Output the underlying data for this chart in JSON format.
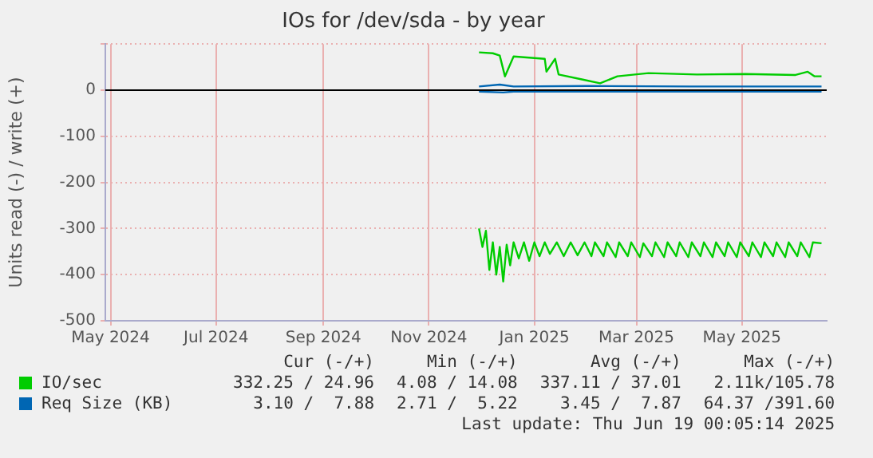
{
  "chart_data": {
    "type": "line",
    "title": "IOs for /dev/sda - by year",
    "ylabel": "Units read (-) / write (+)",
    "xlim": [
      "2024-04-28",
      "2025-06-19"
    ],
    "xticks": [
      {
        "value": "2024-05-01",
        "label": "May 2024"
      },
      {
        "value": "2024-07-01",
        "label": "Jul 2024"
      },
      {
        "value": "2024-09-01",
        "label": "Sep 2024"
      },
      {
        "value": "2024-11-01",
        "label": "Nov 2024"
      },
      {
        "value": "2025-01-01",
        "label": "Jan 2025"
      },
      {
        "value": "2025-03-01",
        "label": "Mar 2025"
      },
      {
        "value": "2025-05-01",
        "label": "May 2025"
      }
    ],
    "ylim": [
      -500,
      100
    ],
    "yticks": [
      -500,
      -400,
      -300,
      -200,
      -100,
      0,
      {
        "value": 100,
        "label": null
      }
    ],
    "grid": true,
    "legend": "bottom",
    "marker": "none",
    "line_style": "solid",
    "ref_lines": [
      {
        "axis": "y",
        "value": 0,
        "color": "#000000"
      }
    ],
    "series": [
      {
        "name": "IO/sec",
        "color": "#00cc00",
        "x": [
          "2024-11-30",
          "2024-12-08",
          "2024-12-12",
          "2024-12-15",
          "2024-12-20",
          "2025-01-07",
          "2025-01-08",
          "2025-01-13",
          "2025-01-15",
          "2025-01-29",
          "2025-02-08",
          "2025-02-18",
          "2025-03-08",
          "2025-04-05",
          "2025-05-03",
          "2025-06-01",
          "2025-06-08",
          "2025-06-12",
          "2025-06-16"
        ],
        "values": [
          82,
          80,
          75,
          30,
          73,
          68,
          40,
          68,
          34,
          23,
          15,
          30,
          37,
          34,
          35,
          33,
          40,
          30,
          30
        ]
      },
      {
        "color": "#00cc00",
        "x": [
          "2024-11-30",
          "2024-12-02",
          "2024-12-04",
          "2024-12-06",
          "2024-12-08",
          "2024-12-10",
          "2024-12-12",
          "2024-12-14",
          "2024-12-16",
          "2024-12-18",
          "2024-12-20",
          "2024-12-23",
          "2024-12-26",
          "2024-12-29",
          "2025-01-01",
          "2025-01-04",
          "2025-01-07",
          "2025-01-10",
          "2025-01-14",
          "2025-01-18",
          "2025-01-22",
          "2025-01-26",
          "2025-01-30",
          "2025-02-03",
          "2025-02-05",
          "2025-02-10",
          "2025-02-12",
          "2025-02-17",
          "2025-02-19",
          "2025-02-24",
          "2025-02-26",
          "2025-03-03",
          "2025-03-05",
          "2025-03-10",
          "2025-03-12",
          "2025-03-17",
          "2025-03-19",
          "2025-03-24",
          "2025-03-26",
          "2025-03-31",
          "2025-04-02",
          "2025-04-07",
          "2025-04-09",
          "2025-04-14",
          "2025-04-16",
          "2025-04-21",
          "2025-04-23",
          "2025-04-28",
          "2025-04-30",
          "2025-05-05",
          "2025-05-07",
          "2025-05-12",
          "2025-05-14",
          "2025-05-19",
          "2025-05-21",
          "2025-05-26",
          "2025-05-28",
          "2025-06-02",
          "2025-06-04",
          "2025-06-09",
          "2025-06-11",
          "2025-06-16"
        ],
        "values": [
          -300,
          -340,
          -305,
          -390,
          -330,
          -400,
          -340,
          -415,
          -335,
          -380,
          -330,
          -365,
          -330,
          -370,
          -330,
          -360,
          -330,
          -355,
          -330,
          -360,
          -330,
          -358,
          -330,
          -360,
          -330,
          -360,
          -330,
          -362,
          -330,
          -360,
          -330,
          -362,
          -332,
          -360,
          -330,
          -362,
          -330,
          -360,
          -330,
          -362,
          -330,
          -360,
          -330,
          -362,
          -330,
          -360,
          -330,
          -362,
          -330,
          -360,
          -330,
          -362,
          -330,
          -360,
          -330,
          -362,
          -330,
          -360,
          -330,
          -362,
          -330,
          -332
        ]
      },
      {
        "name": "Req Size (KB)",
        "color": "#0066b3",
        "x": [
          "2024-11-30",
          "2024-12-12",
          "2024-12-20",
          "2025-02-01",
          "2025-04-01",
          "2025-06-16"
        ],
        "values": [
          8,
          12,
          8,
          9,
          8,
          8
        ]
      },
      {
        "color": "#0066b3",
        "x": [
          "2024-11-30",
          "2024-12-14",
          "2024-12-20",
          "2025-06-16"
        ],
        "values": [
          -3,
          -5,
          -3,
          -3
        ]
      }
    ],
    "annotations": [
      "Cur (-/+)",
      "Min (-/+)",
      "Avg (-/+)",
      "Max (-/+)",
      "332.25 / 24.96",
      "4.08 / 14.08",
      "337.11 / 37.01",
      "2.11k/105.78",
      "3.10 /  7.88",
      "2.71 /  5.22",
      "3.45 /  7.87",
      "64.37 /391.60",
      "Last update: Thu Jun 19 00:05:14 2025"
    ]
  }
}
